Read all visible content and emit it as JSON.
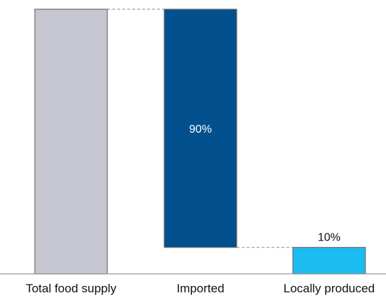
{
  "chart_data": {
    "type": "bar",
    "subtype": "waterfall",
    "title": "",
    "xlabel": "",
    "ylabel": "",
    "categories": [
      "Total food supply",
      "Imported",
      "Locally produced"
    ],
    "values": [
      100,
      90,
      10
    ],
    "bases": [
      0,
      10,
      0
    ],
    "data_labels": [
      "",
      "90%",
      "10%"
    ],
    "colors": [
      "#c6c6d0",
      "#03508e",
      "#1bbcf0"
    ],
    "ylim": [
      0,
      100
    ],
    "grid": false,
    "legend": "none",
    "connectors": true
  }
}
